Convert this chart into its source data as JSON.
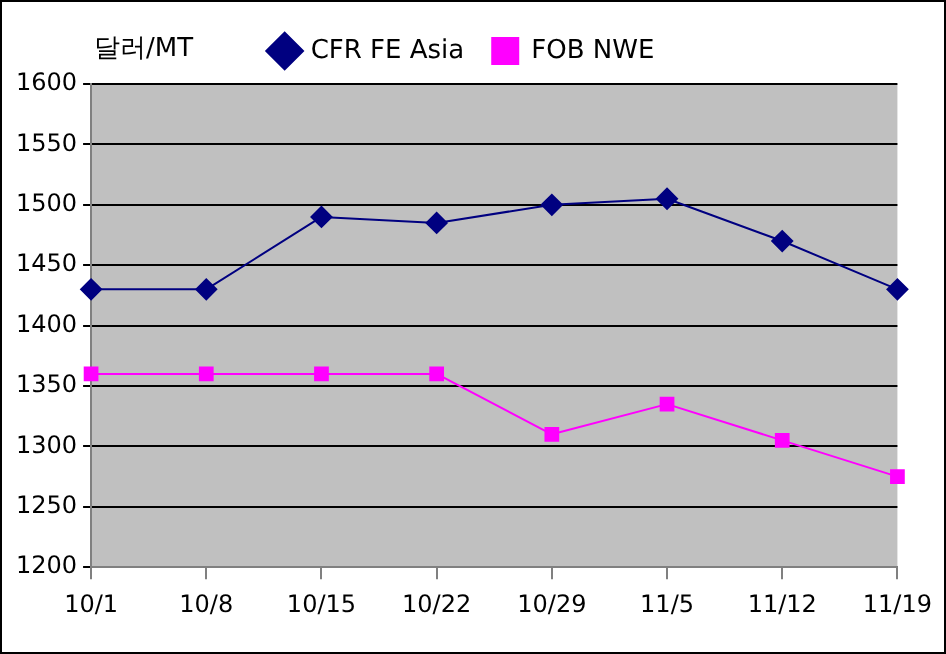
{
  "chart_data": {
    "type": "line",
    "ylabel": "달러/MT",
    "categories": [
      "10/1",
      "10/8",
      "10/15",
      "10/22",
      "10/29",
      "11/5",
      "11/12",
      "11/19"
    ],
    "series": [
      {
        "name": "CFR FE Asia",
        "color": "#000080",
        "marker": "diamond",
        "values": [
          1430,
          1430,
          1490,
          1485,
          1500,
          1505,
          1470,
          1430
        ]
      },
      {
        "name": "FOB NWE",
        "color": "#ff00ff",
        "marker": "square",
        "values": [
          1360,
          1360,
          1360,
          1360,
          1310,
          1335,
          1305,
          1275
        ]
      }
    ],
    "ylim": [
      1200,
      1600
    ],
    "yticks": [
      1200,
      1250,
      1300,
      1350,
      1400,
      1450,
      1500,
      1550,
      1600
    ],
    "grid": "y",
    "legend": "top",
    "line_style": "solid"
  }
}
